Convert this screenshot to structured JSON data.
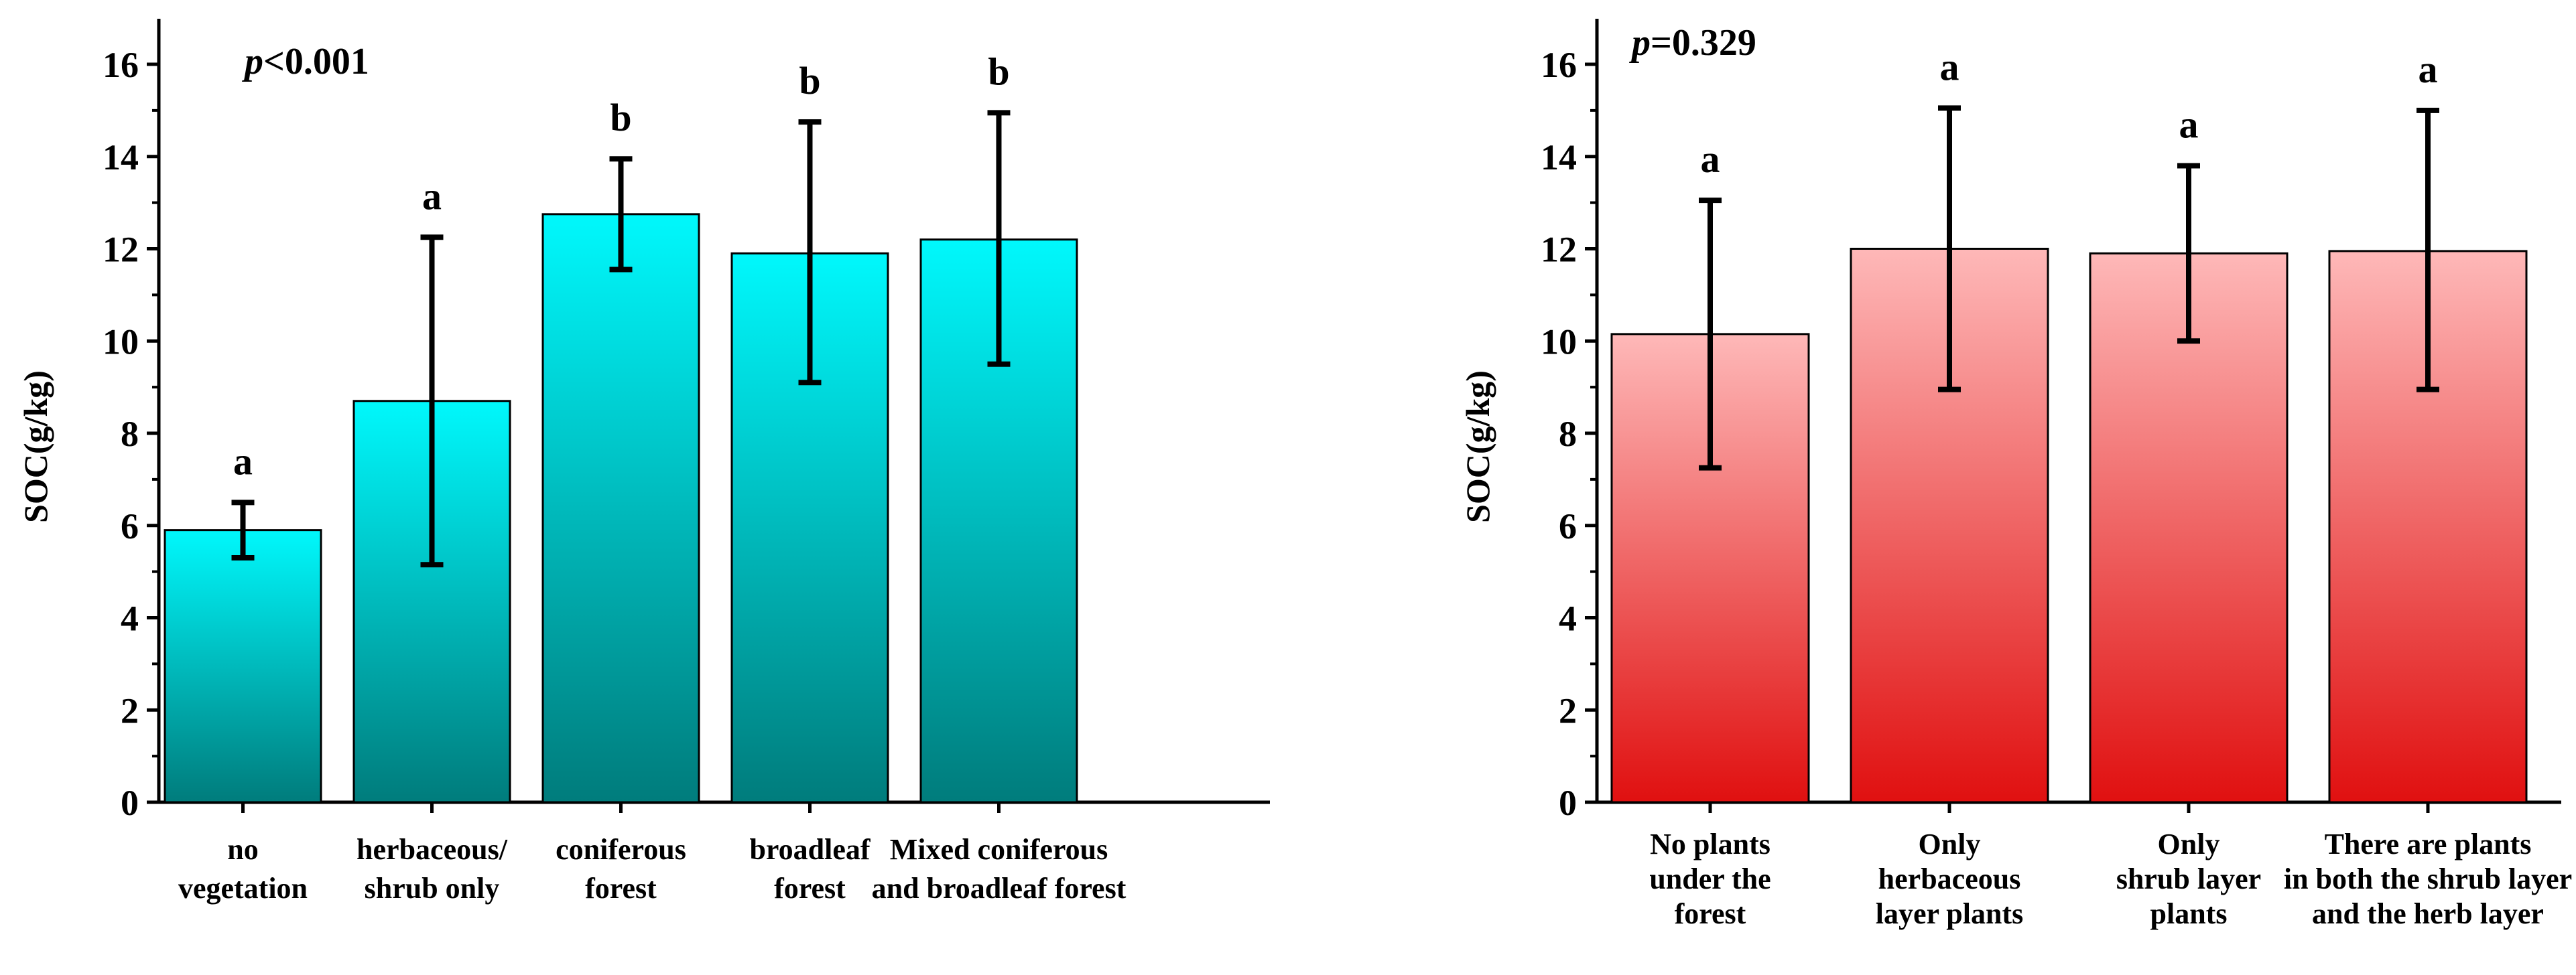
{
  "chart_data": [
    {
      "type": "bar",
      "ylabel": "SOC(g/kg)",
      "ylim": [
        0,
        17
      ],
      "yticks": [
        0,
        2,
        4,
        6,
        8,
        10,
        12,
        14,
        16
      ],
      "p_prefix": "p",
      "p_value": "<0.001",
      "color_top": "#00f8fc",
      "color_bottom": "#007c7c",
      "categories": [
        [
          "no",
          "vegetation"
        ],
        [
          "herbaceous/",
          "shrub only"
        ],
        [
          "coniferous",
          "forest"
        ],
        [
          "broadleaf",
          "forest"
        ],
        [
          "Mixed coniferous",
          "and broadleaf forest"
        ]
      ],
      "values": [
        5.9,
        8.7,
        12.75,
        11.9,
        12.2
      ],
      "error_low": [
        5.3,
        5.15,
        11.55,
        9.1,
        9.5
      ],
      "error_high": [
        6.5,
        12.25,
        13.95,
        14.75,
        14.95
      ],
      "significance": [
        "a",
        "a",
        "b",
        "b",
        "b"
      ]
    },
    {
      "type": "bar",
      "ylabel": "SOC(g/kg)",
      "ylim": [
        0,
        17
      ],
      "yticks": [
        0,
        2,
        4,
        6,
        8,
        10,
        12,
        14,
        16
      ],
      "p_prefix": "p",
      "p_value": "=0.329",
      "color_top": "#feb8b8",
      "color_bottom": "#e01010",
      "categories": [
        [
          "No plants",
          "under the",
          "forest"
        ],
        [
          "Only",
          "herbaceous",
          "layer plants"
        ],
        [
          "Only",
          "shrub layer",
          "plants"
        ],
        [
          "There are plants",
          "in both the shrub layer",
          "and the herb layer"
        ]
      ],
      "values": [
        10.15,
        12.0,
        11.9,
        11.95
      ],
      "error_low": [
        7.25,
        8.95,
        10.0,
        8.95
      ],
      "error_high": [
        13.05,
        15.05,
        13.8,
        15.0
      ],
      "significance": [
        "a",
        "a",
        "a",
        "a"
      ]
    }
  ]
}
